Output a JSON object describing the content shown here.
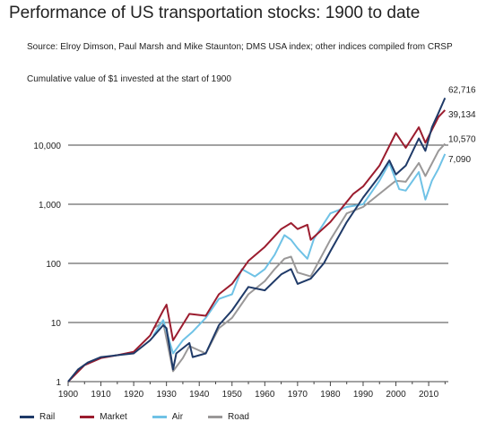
{
  "header": {
    "title": "Performance of US transportation stocks: 1900 to date",
    "source": "Source: Elroy Dimson, Paul Marsh and Mike Staunton; DMS USA index; other indices compiled from CRSP"
  },
  "chart_data": {
    "type": "line",
    "ylabel": "Cumulative value of $1 invested at the start of 1900",
    "xlabel": "",
    "xlim": [
      1900,
      2016
    ],
    "ylim": [
      1,
      100000
    ],
    "yscale": "log",
    "x_ticks": [
      1900,
      1910,
      1920,
      1930,
      1940,
      1950,
      1960,
      1970,
      1980,
      1990,
      2000,
      2010
    ],
    "y_ticks": [
      1,
      10,
      100,
      1000,
      10000
    ],
    "y_tick_labels": [
      "1",
      "10",
      "100",
      "1,000",
      "10,000"
    ],
    "grid": "horizontal",
    "legend_position": "bottom",
    "series": [
      {
        "name": "Rail",
        "color": "#1f3a68",
        "end_label": "62,716",
        "points": [
          [
            1900,
            1
          ],
          [
            1903,
            1.6
          ],
          [
            1906,
            2.1
          ],
          [
            1910,
            2.6
          ],
          [
            1915,
            2.8
          ],
          [
            1920,
            3.0
          ],
          [
            1925,
            5.0
          ],
          [
            1929,
            9.0
          ],
          [
            1930,
            8.0
          ],
          [
            1932,
            1.6
          ],
          [
            1933,
            3.0
          ],
          [
            1937,
            4.5
          ],
          [
            1938,
            2.6
          ],
          [
            1942,
            3.0
          ],
          [
            1946,
            9.0
          ],
          [
            1950,
            16
          ],
          [
            1955,
            40
          ],
          [
            1960,
            35
          ],
          [
            1965,
            65
          ],
          [
            1968,
            80
          ],
          [
            1970,
            45
          ],
          [
            1974,
            55
          ],
          [
            1978,
            100
          ],
          [
            1980,
            160
          ],
          [
            1985,
            500
          ],
          [
            1990,
            1300
          ],
          [
            1995,
            3000
          ],
          [
            1998,
            5500
          ],
          [
            2000,
            3200
          ],
          [
            2003,
            4500
          ],
          [
            2007,
            13000
          ],
          [
            2009,
            8000
          ],
          [
            2011,
            20000
          ],
          [
            2013,
            35000
          ],
          [
            2015,
            62716
          ]
        ]
      },
      {
        "name": "Market",
        "color": "#9b1c2e",
        "end_label": "39,134",
        "points": [
          [
            1900,
            1
          ],
          [
            1905,
            1.9
          ],
          [
            1910,
            2.5
          ],
          [
            1915,
            2.8
          ],
          [
            1920,
            3.2
          ],
          [
            1925,
            6.0
          ],
          [
            1929,
            16
          ],
          [
            1930,
            20
          ],
          [
            1932,
            5.0
          ],
          [
            1937,
            14
          ],
          [
            1942,
            13
          ],
          [
            1946,
            30
          ],
          [
            1950,
            45
          ],
          [
            1955,
            110
          ],
          [
            1960,
            190
          ],
          [
            1965,
            380
          ],
          [
            1968,
            480
          ],
          [
            1970,
            380
          ],
          [
            1973,
            450
          ],
          [
            1974,
            250
          ],
          [
            1980,
            500
          ],
          [
            1987,
            1500
          ],
          [
            1990,
            2000
          ],
          [
            1995,
            4500
          ],
          [
            2000,
            16000
          ],
          [
            2003,
            9000
          ],
          [
            2007,
            20000
          ],
          [
            2009,
            11000
          ],
          [
            2013,
            30000
          ],
          [
            2015,
            39134
          ]
        ]
      },
      {
        "name": "Air",
        "color": "#6fc2e6",
        "end_label": "7,090",
        "points": [
          [
            1926,
            6
          ],
          [
            1929,
            11
          ],
          [
            1932,
            3
          ],
          [
            1935,
            5
          ],
          [
            1938,
            7
          ],
          [
            1942,
            12
          ],
          [
            1946,
            25
          ],
          [
            1950,
            30
          ],
          [
            1953,
            80
          ],
          [
            1957,
            60
          ],
          [
            1960,
            80
          ],
          [
            1963,
            140
          ],
          [
            1966,
            300
          ],
          [
            1968,
            250
          ],
          [
            1970,
            180
          ],
          [
            1973,
            120
          ],
          [
            1975,
            260
          ],
          [
            1980,
            700
          ],
          [
            1985,
            900
          ],
          [
            1990,
            1000
          ],
          [
            1995,
            2500
          ],
          [
            1998,
            5000
          ],
          [
            2001,
            1800
          ],
          [
            2003,
            1700
          ],
          [
            2007,
            3500
          ],
          [
            2009,
            1200
          ],
          [
            2011,
            2500
          ],
          [
            2013,
            4000
          ],
          [
            2015,
            7090
          ]
        ]
      },
      {
        "name": "Road",
        "color": "#9a9898",
        "end_label": "10,570",
        "points": [
          [
            1926,
            8
          ],
          [
            1929,
            10
          ],
          [
            1932,
            1.5
          ],
          [
            1935,
            2.5
          ],
          [
            1937,
            4
          ],
          [
            1942,
            3
          ],
          [
            1946,
            8
          ],
          [
            1950,
            12
          ],
          [
            1955,
            30
          ],
          [
            1960,
            50
          ],
          [
            1963,
            80
          ],
          [
            1966,
            120
          ],
          [
            1968,
            130
          ],
          [
            1970,
            70
          ],
          [
            1974,
            60
          ],
          [
            1980,
            250
          ],
          [
            1985,
            700
          ],
          [
            1990,
            900
          ],
          [
            1995,
            1500
          ],
          [
            2000,
            2500
          ],
          [
            2003,
            2400
          ],
          [
            2007,
            5000
          ],
          [
            2009,
            3000
          ],
          [
            2013,
            8000
          ],
          [
            2015,
            10570
          ]
        ]
      }
    ]
  }
}
